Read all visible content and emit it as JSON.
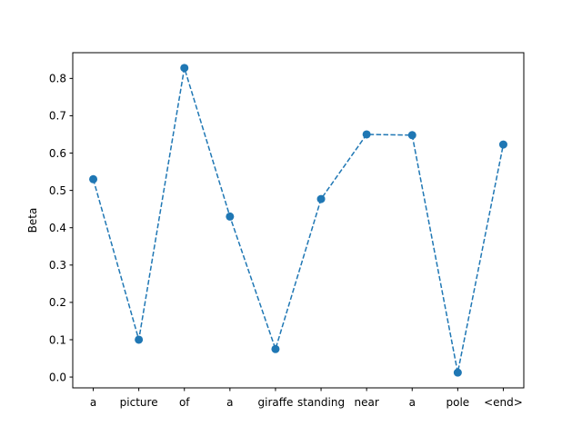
{
  "chart_data": {
    "type": "line",
    "title": "",
    "xlabel": "",
    "ylabel": "Beta",
    "categories": [
      "a",
      "picture",
      "of",
      "a",
      "giraffe",
      "standing",
      "near",
      "a",
      "pole",
      "<end>"
    ],
    "series": [
      {
        "values": [
          0.53,
          0.1,
          0.828,
          0.43,
          0.075,
          0.477,
          0.65,
          0.648,
          0.012,
          0.623
        ],
        "color": "#1f77b4",
        "line_style": "dashed",
        "marker": "circle"
      }
    ],
    "ylim": [
      -0.029,
      0.869
    ],
    "yticks": [
      0.0,
      0.1,
      0.2,
      0.3,
      0.4,
      0.5,
      0.6,
      0.7,
      0.8
    ],
    "ytick_labels": [
      "0.0",
      "0.1",
      "0.2",
      "0.3",
      "0.4",
      "0.5",
      "0.6",
      "0.7",
      "0.8"
    ],
    "grid": false,
    "legend": "none"
  }
}
